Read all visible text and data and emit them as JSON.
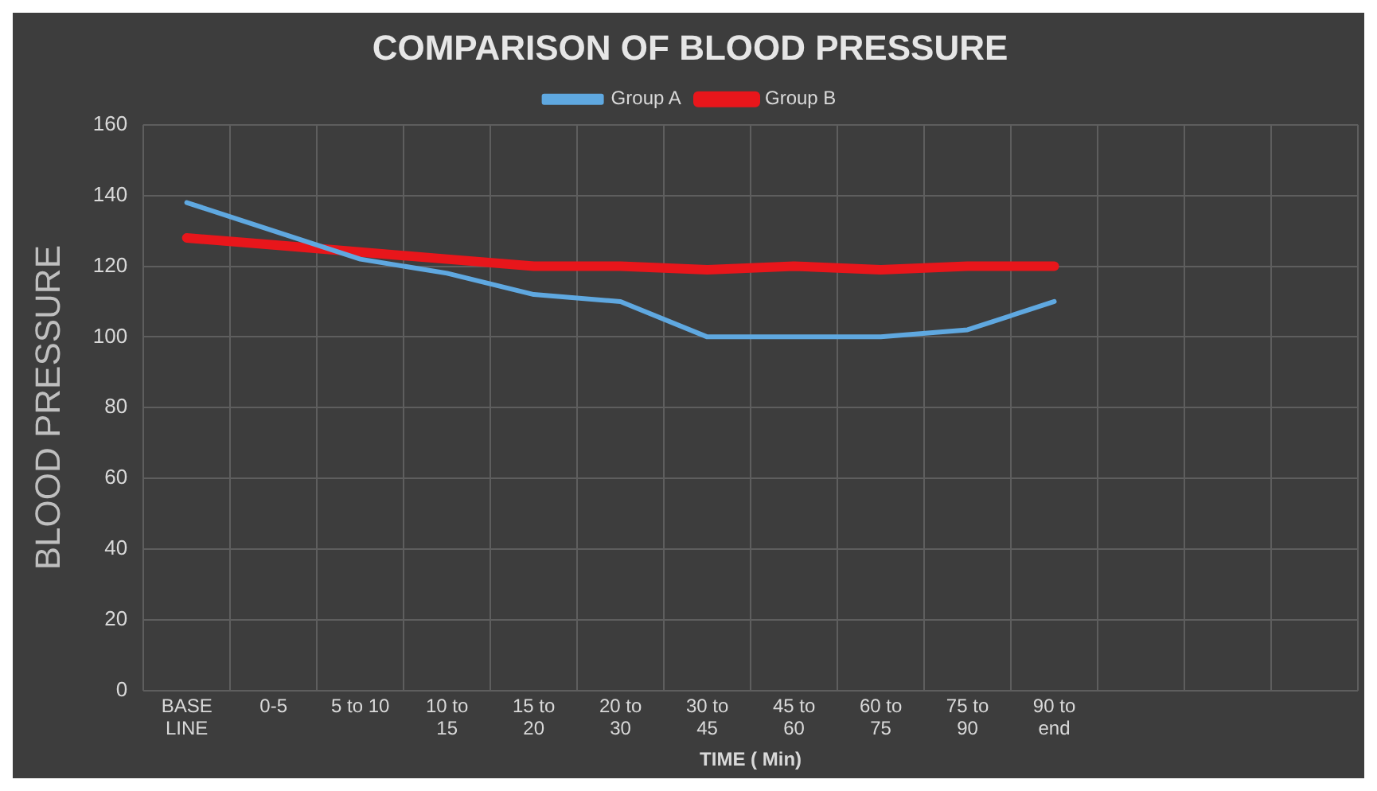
{
  "chart_data": {
    "type": "line",
    "title": "COMPARISON OF BLOOD PRESSURE",
    "xlabel": "TIME ( Min)",
    "ylabel": "BLOOD PRESSURE",
    "categories": [
      "BASE LINE",
      "0-5",
      "5 to 10",
      "10 to 15",
      "15 to 20",
      "20 to 30",
      "30 to 45",
      "45 to 60",
      "60 to 75",
      "75 to 90",
      "90 to end",
      null,
      null,
      null
    ],
    "series": [
      {
        "name": "Group A",
        "color": "#5fa8e0",
        "values": [
          138,
          130,
          122,
          118,
          112,
          110,
          100,
          100,
          100,
          102,
          110,
          null,
          null,
          null
        ]
      },
      {
        "name": "Group B",
        "color": "#e8161b",
        "values": [
          128,
          126,
          124,
          122,
          120,
          120,
          119,
          120,
          119,
          120,
          120,
          null,
          null,
          null
        ]
      }
    ],
    "ylim": [
      0,
      160
    ],
    "yticks": [
      0,
      20,
      40,
      60,
      80,
      100,
      120,
      140,
      160
    ],
    "grid": true,
    "legend": "top",
    "marker": "none",
    "line_style": "solid"
  }
}
